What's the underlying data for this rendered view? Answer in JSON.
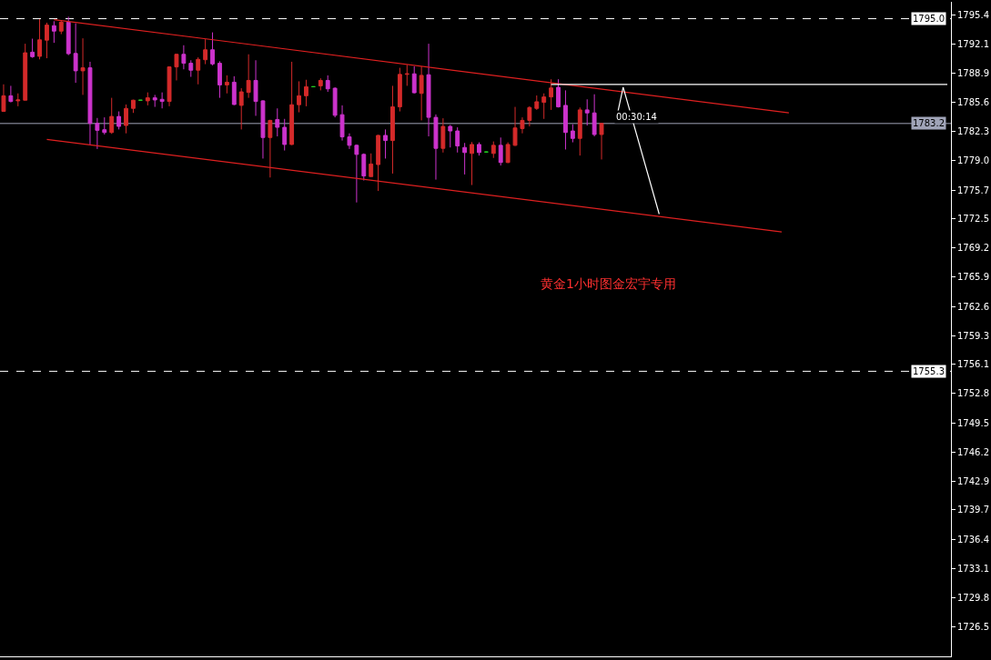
{
  "chart_data": {
    "type": "candlestick",
    "categories": [
      null,
      null,
      null,
      null,
      null,
      null,
      null,
      null,
      null,
      null,
      null,
      null,
      null,
      null,
      null,
      null,
      null,
      null,
      null,
      null,
      null,
      null,
      null,
      null,
      null,
      null,
      null,
      null,
      null,
      null,
      null,
      null,
      null,
      null,
      null,
      null,
      null,
      null,
      null,
      null,
      null,
      null,
      null,
      null,
      null,
      null,
      null,
      null,
      null,
      null,
      null,
      null,
      null,
      null,
      null,
      null,
      null,
      null,
      null,
      null,
      null,
      null,
      null,
      null,
      null,
      null,
      null,
      null,
      null,
      null,
      null,
      null,
      null,
      null,
      null,
      null,
      null,
      null,
      null,
      null,
      null,
      null,
      null,
      null,
      null,
      null,
      null,
      null,
      null,
      null,
      null,
      null,
      null,
      null,
      null,
      null,
      null,
      null,
      null,
      null,
      null,
      null,
      null,
      null,
      null,
      null,
      null,
      null,
      null,
      null,
      null,
      null,
      null,
      null,
      null,
      null,
      null,
      null,
      null,
      null,
      null,
      null,
      null,
      null,
      null,
      null,
      null,
      null,
      null,
      null,
      null,
      null
    ],
    "ohlc": [
      [
        1784.56,
        1787.61,
        1784.5,
        1786.32
      ],
      [
        1786.32,
        1787.44,
        1785.58,
        1785.68
      ],
      [
        1785.75,
        1786.59,
        1785.14,
        1785.85
      ],
      [
        1785.82,
        1792.18,
        1785.82,
        1791.16
      ],
      [
        1791.23,
        1792.75,
        1790.59,
        1790.72
      ],
      [
        1790.76,
        1794.95,
        1790.42,
        1792.62
      ],
      [
        1792.58,
        1794.55,
        1790.55,
        1794.28
      ],
      [
        1794.21,
        1794.72,
        1792.28,
        1793.6
      ],
      [
        1793.6,
        1794.82,
        1793.26,
        1794.61
      ],
      [
        1794.61,
        1795.22,
        1790.89,
        1791.06
      ],
      [
        1791.09,
        1794.48,
        1787.78,
        1789.13
      ],
      [
        1789.13,
        1792.79,
        1786.42,
        1789.47
      ],
      [
        1789.47,
        1790.15,
        1780.84,
        1783.21
      ],
      [
        1783.21,
        1783.82,
        1780.33,
        1782.43
      ],
      [
        1782.5,
        1783.89,
        1781.96,
        1782.19
      ],
      [
        1782.19,
        1786.09,
        1782.03,
        1783.99
      ],
      [
        1783.99,
        1784.56,
        1782.53,
        1782.87
      ],
      [
        1782.97,
        1785.34,
        1782.09,
        1784.9
      ],
      [
        1784.9,
        1785.88,
        1784.39,
        1785.82
      ],
      [
        1785.82,
        1785.82,
        1785.82,
        1785.82
      ],
      [
        1785.75,
        1786.7,
        1785.24,
        1786.09
      ],
      [
        1786.09,
        1786.42,
        1785.07,
        1785.85
      ],
      [
        1785.92,
        1786.7,
        1784.9,
        1785.68
      ],
      [
        1785.68,
        1789.64,
        1785.14,
        1789.57
      ],
      [
        1789.57,
        1791.06,
        1788.05,
        1790.99
      ],
      [
        1790.99,
        1792.01,
        1789.3,
        1789.98
      ],
      [
        1789.98,
        1790.32,
        1788.45,
        1789.2
      ],
      [
        1789.2,
        1790.65,
        1787.61,
        1790.42
      ],
      [
        1790.38,
        1792.69,
        1789.88,
        1791.5
      ],
      [
        1791.5,
        1793.46,
        1789.74,
        1789.91
      ],
      [
        1789.98,
        1790.21,
        1786.09,
        1787.54
      ],
      [
        1787.54,
        1788.62,
        1786.59,
        1787.85
      ],
      [
        1787.85,
        1788.52,
        1785.27,
        1785.34
      ],
      [
        1785.24,
        1787.17,
        1782.53,
        1786.76
      ],
      [
        1786.7,
        1790.99,
        1786.09,
        1788.05
      ],
      [
        1788.05,
        1790.32,
        1784.06,
        1785.68
      ],
      [
        1785.75,
        1785.82,
        1779.25,
        1781.62
      ],
      [
        1781.62,
        1783.62,
        1777.12,
        1783.55
      ],
      [
        1783.65,
        1784.9,
        1781.75,
        1782.77
      ],
      [
        1782.77,
        1783.72,
        1780.16,
        1780.84
      ],
      [
        1780.84,
        1790.15,
        1780.77,
        1785.31
      ],
      [
        1785.31,
        1787.95,
        1784.46,
        1786.32
      ],
      [
        1786.32,
        1788.12,
        1785.14,
        1787.34
      ],
      [
        1787.34,
        1787.34,
        1787.34,
        1787.34
      ],
      [
        1787.44,
        1788.29,
        1786.93,
        1788.05
      ],
      [
        1788.05,
        1788.62,
        1786.76,
        1787.1
      ],
      [
        1787.17,
        1787.27,
        1783.89,
        1784.12
      ],
      [
        1784.19,
        1785.24,
        1781.28,
        1781.69
      ],
      [
        1781.69,
        1782.09,
        1780.33,
        1780.74
      ],
      [
        1780.74,
        1780.84,
        1774.31,
        1779.72
      ],
      [
        1779.72,
        1779.83,
        1776.78,
        1777.29
      ],
      [
        1777.22,
        1779.83,
        1777.22,
        1778.64
      ],
      [
        1778.57,
        1781.92,
        1775.6,
        1781.86
      ],
      [
        1781.86,
        1782.53,
        1779.25,
        1781.28
      ],
      [
        1781.28,
        1787.44,
        1777.56,
        1785.07
      ],
      [
        1785.07,
        1789.47,
        1784.56,
        1788.73
      ],
      [
        1788.73,
        1789.81,
        1787.44,
        1788.79
      ],
      [
        1788.79,
        1789.64,
        1786.59,
        1786.66
      ],
      [
        1786.59,
        1789.64,
        1783.55,
        1788.62
      ],
      [
        1788.69,
        1792.18,
        1781.75,
        1783.89
      ],
      [
        1783.89,
        1784.22,
        1776.88,
        1780.4
      ],
      [
        1780.4,
        1783.79,
        1779.93,
        1782.87
      ],
      [
        1782.87,
        1783.04,
        1780.5,
        1782.36
      ],
      [
        1782.36,
        1782.77,
        1779.93,
        1780.67
      ],
      [
        1780.5,
        1781.01,
        1777.46,
        1779.93
      ],
      [
        1779.83,
        1781.11,
        1776.27,
        1780.84
      ],
      [
        1780.84,
        1781.08,
        1779.59,
        1779.93
      ],
      [
        1779.99,
        1779.99,
        1779.99,
        1779.99
      ],
      [
        1779.83,
        1781.18,
        1779.32,
        1780.74
      ],
      [
        1780.74,
        1781.62,
        1778.47,
        1778.81
      ],
      [
        1778.81,
        1781.08,
        1778.74,
        1780.84
      ],
      [
        1780.74,
        1785.07,
        1780.67,
        1782.7
      ],
      [
        1782.63,
        1783.89,
        1782.09,
        1783.55
      ],
      [
        1783.55,
        1785.14,
        1782.87,
        1785.0
      ],
      [
        1784.9,
        1786.36,
        1784.73,
        1785.65
      ],
      [
        1785.58,
        1786.59,
        1783.72,
        1786.19
      ],
      [
        1786.19,
        1788.18,
        1784.73,
        1787.2
      ],
      [
        1787.27,
        1788.18,
        1785.0,
        1785.07
      ],
      [
        1785.24,
        1786.93,
        1780.27,
        1782.19
      ],
      [
        1782.36,
        1783.11,
        1781.08,
        1781.52
      ],
      [
        1781.52,
        1785.0,
        1779.59,
        1784.73
      ],
      [
        1784.73,
        1785.92,
        1782.97,
        1784.39
      ],
      [
        1784.39,
        1786.49,
        1781.75,
        1781.96
      ],
      [
        1781.96,
        1783.28,
        1779.15,
        1783.21
      ],
      null,
      null,
      null,
      null,
      null,
      null,
      null,
      null,
      null,
      null,
      null,
      null,
      null,
      null,
      null,
      null,
      null,
      null,
      null,
      null,
      null,
      null,
      null,
      null,
      null,
      null,
      null,
      null,
      null,
      null,
      null,
      null,
      null,
      null,
      null,
      null,
      null,
      null,
      null,
      null,
      null,
      null,
      null,
      null,
      null,
      null,
      null,
      null
    ],
    "colors": [
      "#d42a2a",
      "#cc33cc",
      "#d42a2a",
      "#d42a2a",
      "#cc33cc",
      "#d42a2a",
      "#d42a2a",
      "#cc33cc",
      "#d42a2a",
      "#cc33cc",
      "#cc33cc",
      "#d42a2a",
      "#cc33cc",
      "#cc33cc",
      "#cc33cc",
      "#d42a2a",
      "#cc33cc",
      "#d42a2a",
      "#d42a2a",
      "#22cc22",
      "#d42a2a",
      "#cc33cc",
      "#cc33cc",
      "#d42a2a",
      "#d42a2a",
      "#cc33cc",
      "#cc33cc",
      "#d42a2a",
      "#d42a2a",
      "#cc33cc",
      "#cc33cc",
      "#d42a2a",
      "#cc33cc",
      "#d42a2a",
      "#d42a2a",
      "#cc33cc",
      "#cc33cc",
      "#d42a2a",
      "#cc33cc",
      "#cc33cc",
      "#d42a2a",
      "#d42a2a",
      "#d42a2a",
      "#22cc22",
      "#d42a2a",
      "#cc33cc",
      "#cc33cc",
      "#cc33cc",
      "#cc33cc",
      "#cc33cc",
      "#cc33cc",
      "#d42a2a",
      "#d42a2a",
      "#cc33cc",
      "#d42a2a",
      "#d42a2a",
      "#d42a2a",
      "#cc33cc",
      "#d42a2a",
      "#cc33cc",
      "#cc33cc",
      "#d42a2a",
      "#cc33cc",
      "#cc33cc",
      "#cc33cc",
      "#d42a2a",
      "#cc33cc",
      "#22cc22",
      "#d42a2a",
      "#cc33cc",
      "#d42a2a",
      "#d42a2a",
      "#d42a2a",
      "#d42a2a",
      "#d42a2a",
      "#d42a2a",
      "#d42a2a",
      "#cc33cc",
      "#cc33cc",
      "#cc33cc",
      "#d42a2a",
      "#cc33cc",
      "#cc33cc",
      "#d42a2a",
      null,
      null,
      null,
      null,
      null,
      null,
      null,
      null,
      null,
      null,
      null,
      null,
      null,
      null,
      null,
      null,
      null,
      null,
      null,
      null,
      null,
      null,
      null,
      null,
      null,
      null,
      null,
      null,
      null,
      null,
      null,
      null,
      null,
      null,
      null,
      null,
      null,
      null,
      null,
      null,
      null,
      null,
      null,
      null,
      null,
      null,
      null,
      null
    ],
    "series": [
      {
        "type": "line",
        "color": "#e02020",
        "values": [
          null,
          null,
          null,
          null,
          null,
          null,
          null,
          1794.9,
          null,
          null,
          null,
          null,
          null,
          null,
          null,
          null,
          null,
          null,
          null,
          null,
          null,
          null,
          null,
          null,
          null,
          null,
          null,
          null,
          null,
          null,
          null,
          null,
          null,
          null,
          null,
          null,
          null,
          null,
          null,
          null,
          null,
          null,
          null,
          null,
          null,
          null,
          null,
          null,
          null,
          null,
          null,
          null,
          null,
          null,
          null,
          null,
          null,
          null,
          null,
          null,
          null,
          null,
          null,
          null,
          null,
          null,
          null,
          null,
          null,
          null,
          null,
          null,
          null,
          null,
          null,
          null,
          null,
          null,
          null,
          null,
          null,
          null,
          null,
          null,
          null,
          null,
          null,
          null,
          null,
          null,
          null,
          null,
          null,
          null,
          null,
          null,
          null,
          null,
          null,
          null,
          null,
          null,
          null,
          null,
          null,
          null,
          null,
          null,
          null,
          1784.4,
          null,
          null,
          null,
          null,
          null,
          null,
          null,
          null,
          null,
          null,
          null,
          null,
          null,
          null,
          null,
          null,
          null,
          null,
          null,
          null,
          null,
          null
        ]
      },
      {
        "type": "line",
        "color": "#e02020",
        "values": [
          null,
          null,
          null,
          null,
          null,
          null,
          1781.4,
          null,
          null,
          null,
          null,
          null,
          null,
          null,
          null,
          null,
          null,
          null,
          null,
          null,
          null,
          null,
          null,
          null,
          null,
          null,
          null,
          null,
          null,
          null,
          null,
          null,
          null,
          null,
          null,
          null,
          null,
          null,
          null,
          null,
          null,
          null,
          null,
          null,
          null,
          null,
          null,
          null,
          null,
          null,
          null,
          null,
          null,
          null,
          null,
          null,
          null,
          null,
          null,
          null,
          null,
          null,
          null,
          null,
          null,
          null,
          null,
          null,
          null,
          null,
          null,
          null,
          null,
          null,
          null,
          null,
          null,
          null,
          null,
          null,
          null,
          null,
          null,
          null,
          null,
          null,
          null,
          null,
          null,
          null,
          null,
          null,
          null,
          null,
          null,
          null,
          null,
          null,
          null,
          null,
          null,
          null,
          null,
          null,
          null,
          null,
          null,
          null,
          1771.0,
          null,
          null,
          null,
          null,
          null,
          null,
          null,
          null,
          null,
          null,
          null,
          null,
          null,
          null,
          null,
          null,
          null,
          null,
          null,
          null,
          null,
          null,
          null
        ]
      },
      {
        "type": "line",
        "color": "#ffffff",
        "values": [
          null,
          null,
          null,
          null,
          null,
          null,
          null,
          null,
          null,
          null,
          null,
          null,
          null,
          null,
          null,
          null,
          null,
          null,
          null,
          null,
          null,
          null,
          null,
          null,
          null,
          null,
          null,
          null,
          null,
          null,
          null,
          null,
          null,
          null,
          null,
          null,
          null,
          null,
          null,
          null,
          null,
          null,
          null,
          null,
          null,
          null,
          null,
          null,
          null,
          null,
          null,
          null,
          null,
          null,
          null,
          null,
          null,
          null,
          null,
          null,
          null,
          null,
          null,
          null,
          null,
          null,
          null,
          null,
          null,
          null,
          null,
          null,
          null,
          null,
          null,
          null,
          1787.6,
          null,
          null,
          null,
          null,
          null,
          null,
          null,
          null,
          null,
          null,
          null,
          null,
          null,
          null,
          null,
          null,
          null,
          null,
          null,
          null,
          null,
          null,
          null,
          null,
          null,
          null,
          null,
          null,
          null,
          null,
          null,
          null,
          null,
          null,
          null,
          null,
          null,
          null,
          null,
          null,
          null,
          null,
          null,
          null,
          null,
          null,
          null,
          null,
          null,
          null,
          null,
          null,
          null,
          null,
          1787.6
        ]
      },
      {
        "type": "line",
        "color": "#ffffff",
        "values": [
          null,
          null,
          null,
          null,
          null,
          null,
          null,
          null,
          null,
          null,
          null,
          null,
          null,
          null,
          null,
          null,
          null,
          null,
          null,
          null,
          null,
          null,
          null,
          null,
          null,
          null,
          null,
          null,
          null,
          null,
          null,
          null,
          null,
          null,
          null,
          null,
          null,
          null,
          null,
          null,
          null,
          null,
          null,
          null,
          null,
          null,
          null,
          null,
          null,
          null,
          null,
          null,
          null,
          null,
          null,
          null,
          null,
          null,
          null,
          null,
          null,
          null,
          null,
          null,
          null,
          null,
          null,
          null,
          null,
          null,
          null,
          null,
          null,
          null,
          null,
          null,
          null,
          null,
          null,
          null,
          null,
          null,
          null,
          null,
          null,
          1783.5,
          1787.3,
          null,
          null,
          null,
          null,
          1773.0,
          null,
          null,
          null,
          null,
          null,
          null,
          null,
          null,
          null,
          null,
          null,
          null,
          null,
          null,
          null,
          null,
          null,
          null,
          null,
          null,
          null,
          null,
          null,
          null,
          null,
          null,
          null,
          null,
          null,
          null,
          null,
          null,
          null,
          null,
          null,
          null,
          null,
          null,
          null,
          null
        ]
      }
    ],
    "ref_lines": [
      {
        "axis": "y",
        "value": 1795.0,
        "label": "1795.0",
        "color": "#ffffff",
        "line_style": "dashed"
      },
      {
        "axis": "y",
        "value": 1783.2,
        "label": "1783.2",
        "color": "#a0a4b8",
        "line_style": "solid"
      },
      {
        "axis": "y",
        "value": 1755.3,
        "label": "1755.3",
        "color": "#ffffff",
        "line_style": "dashed"
      }
    ],
    "annotations": [
      {
        "text": "00:30:14",
        "y": 1784.0
      },
      "黄金1小时图金宏宇专用"
    ],
    "ylim": [
      1723.2,
      1796.9
    ],
    "yticks": [
      1795.4,
      1792.1,
      1788.9,
      1785.6,
      1782.3,
      {
        "value": 1779.0,
        "label": "1779.0"
      },
      1775.7,
      1772.5,
      1769.2,
      1765.9,
      1762.6,
      1759.3,
      1756.1,
      1752.8,
      1749.5,
      1746.2,
      1742.9,
      1739.7,
      1736.4,
      1733.1,
      1729.8,
      1726.5
    ],
    "tick_labels": "y",
    "grid": false
  }
}
